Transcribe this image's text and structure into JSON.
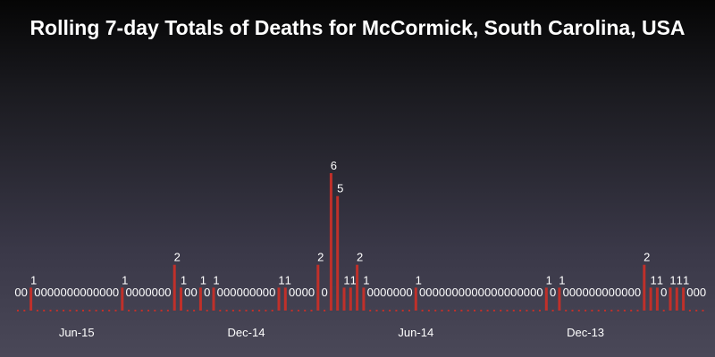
{
  "chart_data": {
    "type": "bar",
    "title": "Rolling 7-day Totals of Deaths for McCormick, South Carolina, USA",
    "xlabel": "",
    "ylabel": "",
    "ylim": [
      0,
      6
    ],
    "x_order": "newest-left",
    "x_tick_labels": [
      "Jun-15",
      "Dec-14",
      "Jun-14",
      "Dec-13"
    ],
    "x_tick_index": [
      9,
      35,
      61,
      87
    ],
    "values": [
      0,
      0,
      1,
      0,
      0,
      0,
      0,
      0,
      0,
      0,
      0,
      0,
      0,
      0,
      0,
      0,
      1,
      0,
      0,
      0,
      0,
      0,
      0,
      0,
      2,
      1,
      0,
      0,
      1,
      0,
      1,
      0,
      0,
      0,
      0,
      0,
      0,
      0,
      0,
      0,
      1,
      1,
      0,
      0,
      0,
      0,
      2,
      0,
      6,
      5,
      1,
      1,
      2,
      1,
      0,
      0,
      0,
      0,
      0,
      0,
      0,
      1,
      0,
      0,
      0,
      0,
      0,
      0,
      0,
      0,
      0,
      0,
      0,
      0,
      0,
      0,
      0,
      0,
      0,
      0,
      0,
      1,
      0,
      1,
      0,
      0,
      0,
      0,
      0,
      0,
      0,
      0,
      0,
      0,
      0,
      0,
      2,
      1,
      1,
      0,
      1,
      1,
      1,
      0,
      0,
      0
    ]
  },
  "colors": {
    "bar": "#c0302a",
    "zero_marker": "#c0302a",
    "text": "#ffffff"
  }
}
